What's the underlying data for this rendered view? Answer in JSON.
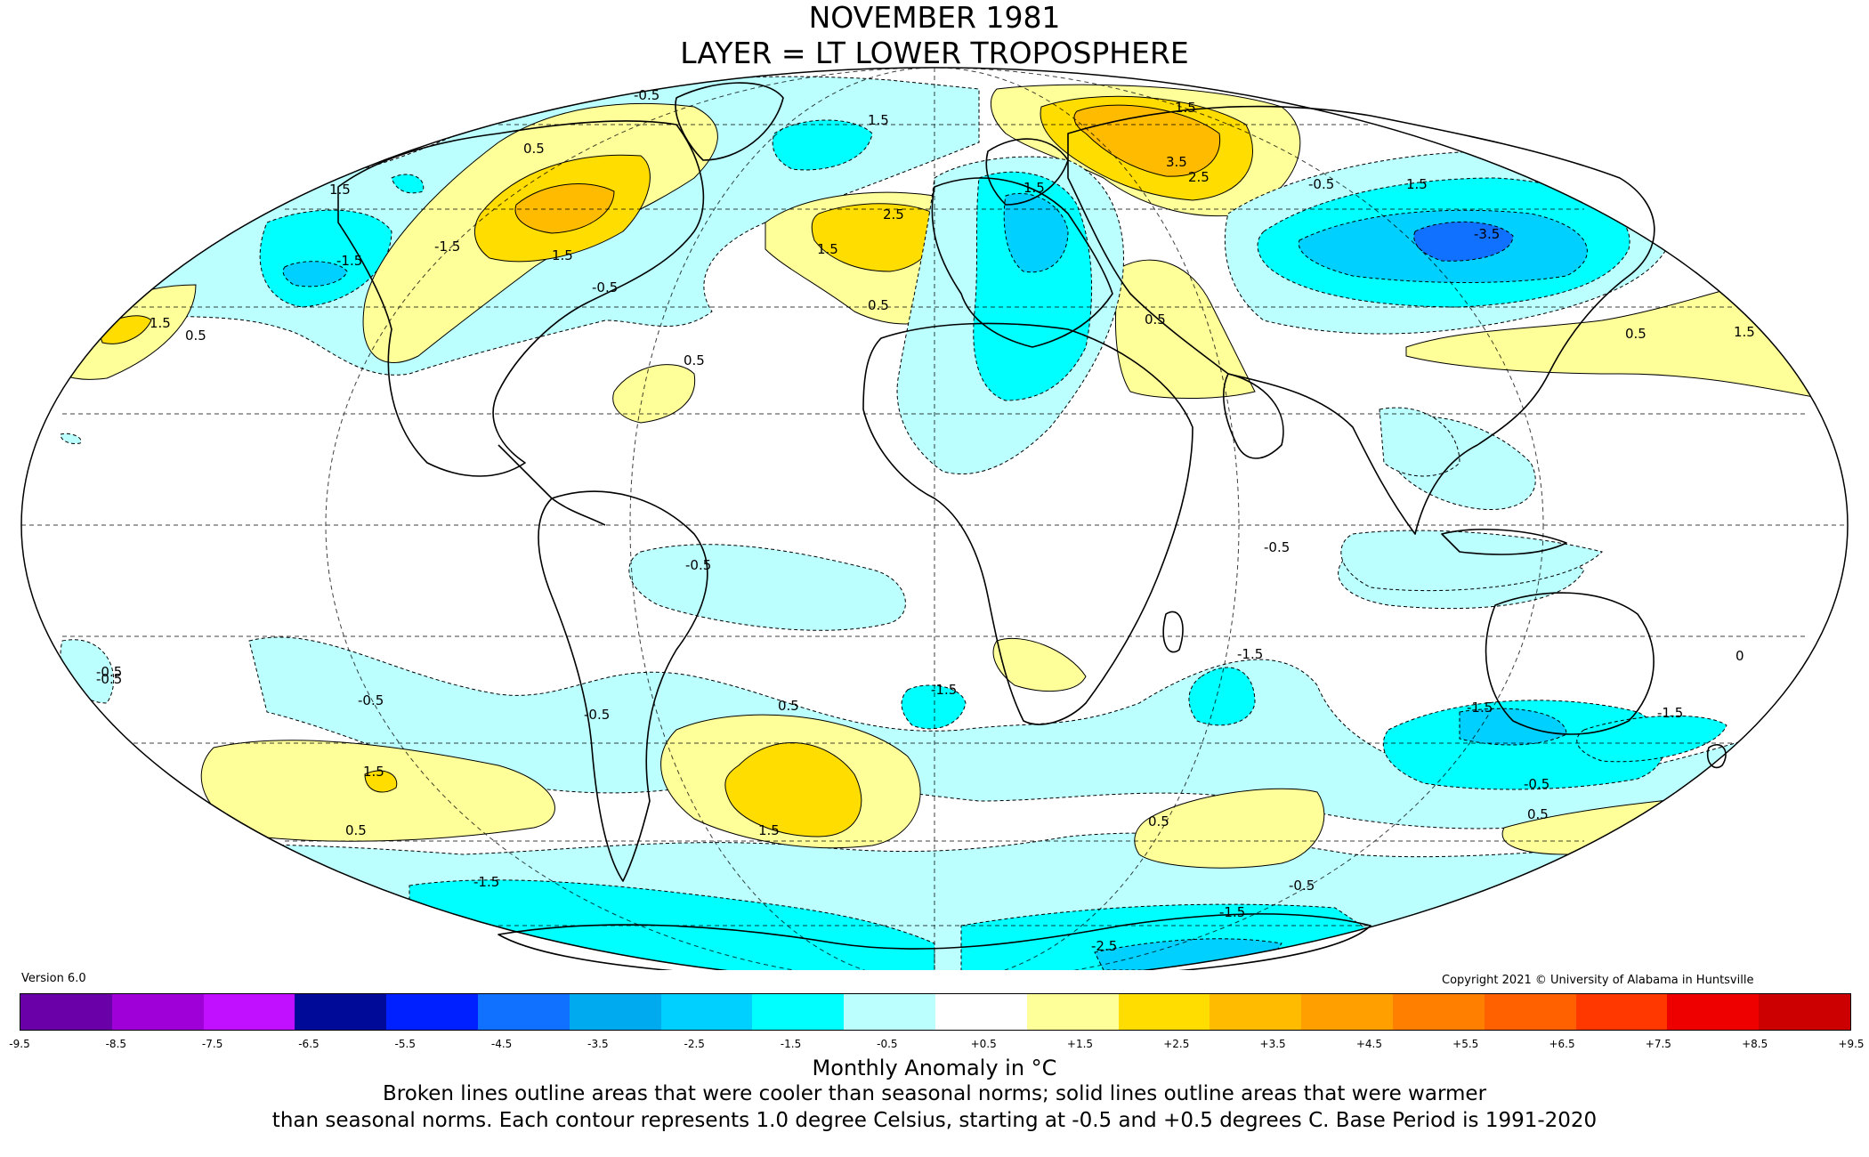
{
  "title": "NOVEMBER 1981",
  "subtitle": "LAYER = LT LOWER TROPOSPHERE",
  "version": "Version 6.0",
  "copyright": "Copyright 2021 © University of Alabama in Huntsville",
  "colorbar": {
    "ticks": [
      "-9.5",
      "-8.5",
      "-7.5",
      "-6.5",
      "-5.5",
      "-4.5",
      "-3.5",
      "-2.5",
      "-1.5",
      "-0.5",
      "+0.5",
      "+1.5",
      "+2.5",
      "+3.5",
      "+4.5",
      "+5.5",
      "+6.5",
      "+7.5",
      "+8.5",
      "+9.5"
    ],
    "colors": [
      "#3a0068",
      "#6a00a8",
      "#a000d8",
      "#c010ff",
      "#000a99",
      "#0020ff",
      "#1070ff",
      "#00aaee",
      "#00d0ff",
      "#00ffff",
      "#bbffff",
      "#ffffff",
      "#ffff99",
      "#ffdd00",
      "#ffbb00",
      "#ffa000",
      "#ff8000",
      "#ff6000",
      "#ff3800",
      "#ee0000",
      "#cc0000"
    ]
  },
  "units_label": "Monthly Anomaly in °C",
  "note_line1": "Broken lines outline areas that were cooler than seasonal norms; solid lines outline areas that were warmer",
  "note_line2": "than seasonal norms. Each contour represents 1.0 degree Celsius, starting at -0.5 and +0.5 degrees C. Base Period is 1991-2020",
  "contour_labels": [
    "-0.5",
    "0.5",
    "1.5",
    "2.5",
    "3.5",
    "-1.5",
    "-2.5",
    "-3.5",
    "0"
  ],
  "map": {
    "projection": "Mollweide",
    "palette": {
      "ocean_land_bg": "#ffffff",
      "cool1": "#bbffff",
      "cool2": "#00ffff",
      "cool3": "#00d0ff",
      "cool4": "#1070ff",
      "warm1": "#ffff99",
      "warm2": "#ffdd00",
      "warm3": "#ffbb00"
    }
  }
}
